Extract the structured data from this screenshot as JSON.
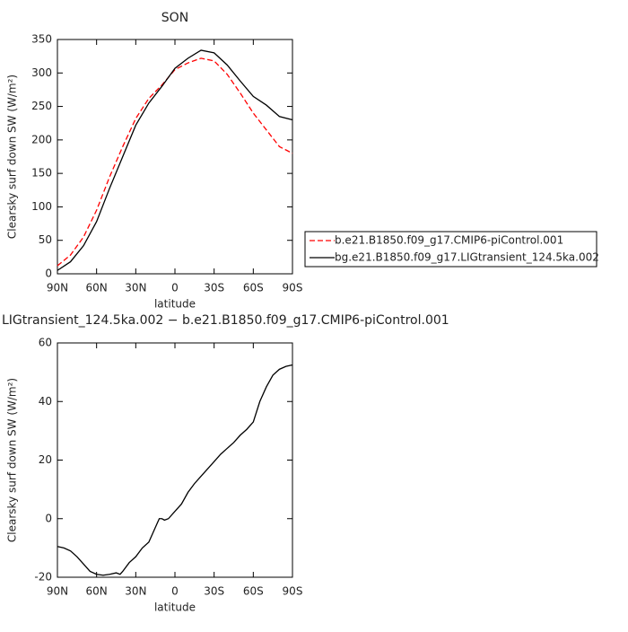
{
  "chart_data": [
    {
      "type": "line",
      "title": "SON",
      "x_label": "latitude",
      "y_label": "Clearsky surf down SW (W/m²)",
      "x": [
        90,
        80,
        70,
        60,
        50,
        40,
        30,
        20,
        10,
        0,
        -10,
        -20,
        -30,
        -40,
        -50,
        -60,
        -70,
        -80,
        -90
      ],
      "xlim": [
        90,
        -90
      ],
      "xticks": [
        {
          "value": 90,
          "label": "90N"
        },
        {
          "value": 60,
          "label": "60N"
        },
        {
          "value": 30,
          "label": "30N"
        },
        0,
        {
          "value": -30,
          "label": "30S"
        },
        {
          "value": -60,
          "label": "60S"
        },
        {
          "value": -90,
          "label": "90S"
        }
      ],
      "ylim": [
        0,
        350
      ],
      "yticks": [
        0,
        50,
        100,
        150,
        200,
        250,
        300,
        350
      ],
      "legend": "right",
      "series": [
        {
          "name": "b.e21.B1850.f09_g17.CMIP6-piControl.001",
          "color": "#ff0000",
          "line_style": "dashed",
          "values": [
            12,
            28,
            55,
            95,
            145,
            190,
            232,
            262,
            282,
            305,
            315,
            322,
            318,
            298,
            270,
            240,
            215,
            190,
            180
          ]
        },
        {
          "name": "bg.e21.B1850.f09_g17.LIGtransient_124.5ka.002",
          "color": "#000000",
          "line_style": "solid",
          "values": [
            5,
            18,
            42,
            78,
            128,
            175,
            222,
            255,
            280,
            307,
            322,
            334,
            330,
            312,
            288,
            265,
            252,
            235,
            230
          ]
        }
      ]
    },
    {
      "type": "line",
      "title": "LIGtransient_124.5ka.002 − b.e21.B1850.f09_g17.CMIP6-piControl.001",
      "x_label": "latitude",
      "y_label": "Clearsky surf down SW (W/m²)",
      "x": [
        90,
        85,
        80,
        75,
        70,
        65,
        60,
        55,
        50,
        45,
        42,
        40,
        35,
        30,
        25,
        20,
        15,
        12,
        10,
        8,
        5,
        0,
        -5,
        -10,
        -15,
        -20,
        -25,
        -30,
        -35,
        -40,
        -45,
        -50,
        -55,
        -60,
        -65,
        -70,
        -75,
        -80,
        -85,
        -90
      ],
      "xlim": [
        90,
        -90
      ],
      "xticks": [
        {
          "value": 90,
          "label": "90N"
        },
        {
          "value": 60,
          "label": "60N"
        },
        {
          "value": 30,
          "label": "30N"
        },
        0,
        {
          "value": -30,
          "label": "30S"
        },
        {
          "value": -60,
          "label": "60S"
        },
        {
          "value": -90,
          "label": "90S"
        }
      ],
      "ylim": [
        -20,
        60
      ],
      "yticks": [
        -20,
        0,
        20,
        40,
        60
      ],
      "series": [
        {
          "color": "#000000",
          "line_style": "solid",
          "values": [
            -9.5,
            -10,
            -11,
            -13,
            -15.5,
            -18,
            -19,
            -19.3,
            -19,
            -18.5,
            -19,
            -18,
            -15,
            -13,
            -10,
            -8,
            -3,
            0,
            0,
            -0.5,
            0,
            2.5,
            5,
            9,
            12,
            14.5,
            17,
            19.5,
            22,
            24,
            26,
            28.5,
            30.5,
            33,
            40,
            45,
            49,
            51,
            52,
            52.5
          ]
        }
      ]
    }
  ]
}
